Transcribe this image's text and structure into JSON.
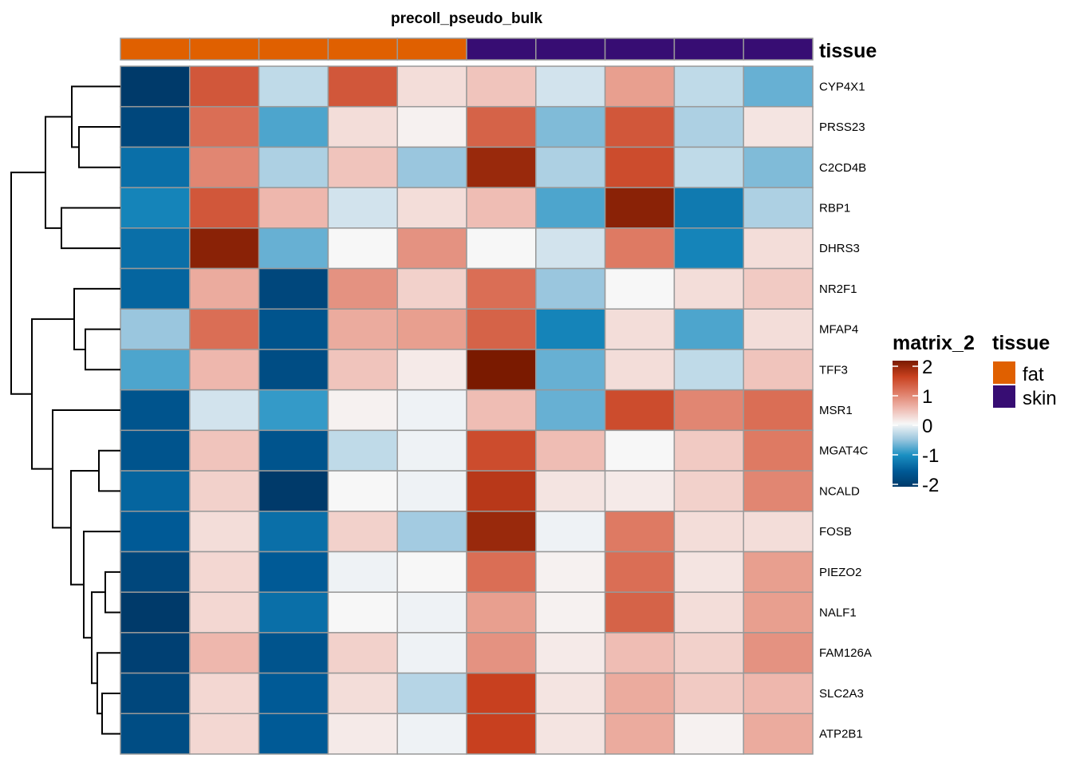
{
  "chart_data": {
    "type": "heatmap",
    "title": "precoll_pseudo_bulk",
    "annotation": {
      "name": "tissue",
      "values": [
        "fat",
        "fat",
        "fat",
        "fat",
        "fat",
        "skin",
        "skin",
        "skin",
        "skin",
        "skin"
      ],
      "colors": {
        "fat": "#e06000",
        "skin": "#370d73"
      }
    },
    "rows": [
      "CYP4X1",
      "PRSS23",
      "C2CD4B",
      "RBP1",
      "DHRS3",
      "NR2F1",
      "MFAP4",
      "TFF3",
      "MSR1",
      "MGAT4C",
      "NCALD",
      "FOSB",
      "PIEZO2",
      "NALF1",
      "FAM126A",
      "SLC2A3",
      "ATP2B1"
    ],
    "values": [
      [
        -2.0,
        1.3,
        -0.3,
        1.3,
        0.2,
        0.4,
        -0.2,
        0.7,
        -0.3,
        -0.7
      ],
      [
        -1.8,
        1.1,
        -0.8,
        0.2,
        0.05,
        1.2,
        -0.6,
        1.3,
        -0.4,
        0.15
      ],
      [
        -1.3,
        0.9,
        -0.4,
        0.4,
        -0.5,
        1.8,
        -0.4,
        1.4,
        -0.3,
        -0.6
      ],
      [
        -1.1,
        1.3,
        0.5,
        -0.2,
        0.2,
        0.45,
        -0.8,
        1.9,
        -1.2,
        -0.4
      ],
      [
        -1.3,
        1.9,
        -0.7,
        0.0,
        0.8,
        0.0,
        -0.2,
        1.0,
        -1.1,
        0.2
      ],
      [
        -1.4,
        0.6,
        -1.8,
        0.8,
        0.3,
        1.1,
        -0.5,
        0.0,
        0.2,
        0.35
      ],
      [
        -0.5,
        1.1,
        -1.6,
        0.6,
        0.7,
        1.2,
        -1.1,
        0.2,
        -0.8,
        0.2
      ],
      [
        -0.8,
        0.5,
        -1.7,
        0.4,
        0.1,
        2.1,
        -0.7,
        0.2,
        -0.3,
        0.4
      ],
      [
        -1.6,
        -0.2,
        -0.9,
        0.05,
        -0.05,
        0.45,
        -0.7,
        1.4,
        0.9,
        1.1
      ],
      [
        -1.6,
        0.4,
        -1.6,
        -0.3,
        -0.05,
        1.4,
        0.45,
        0.0,
        0.35,
        1.0
      ],
      [
        -1.4,
        0.3,
        -2.0,
        0.0,
        -0.05,
        1.6,
        0.15,
        0.1,
        0.3,
        0.9
      ],
      [
        -1.5,
        0.2,
        -1.3,
        0.3,
        -0.45,
        1.8,
        -0.05,
        1.0,
        0.2,
        0.2
      ],
      [
        -1.8,
        0.25,
        -1.5,
        -0.05,
        0.0,
        1.1,
        0.05,
        1.1,
        0.15,
        0.7
      ],
      [
        -2.1,
        0.25,
        -1.3,
        0.0,
        -0.05,
        0.7,
        0.05,
        1.2,
        0.2,
        0.7
      ],
      [
        -1.9,
        0.5,
        -1.6,
        0.3,
        -0.05,
        0.8,
        0.1,
        0.45,
        0.3,
        0.8
      ],
      [
        -1.8,
        0.25,
        -1.5,
        0.2,
        -0.35,
        1.5,
        0.15,
        0.6,
        0.35,
        0.5
      ],
      [
        -1.7,
        0.25,
        -1.5,
        0.1,
        -0.05,
        1.5,
        0.15,
        0.6,
        0.05,
        0.6
      ]
    ],
    "color_scale": {
      "name": "matrix_2",
      "stops": [
        [
          -2,
          "#003a6a"
        ],
        [
          -1.5,
          "#005a96"
        ],
        [
          -1,
          "#1a8fc2"
        ],
        [
          -0.5,
          "#9ac6de"
        ],
        [
          0,
          "#f7f7f7"
        ],
        [
          0.5,
          "#eeb7ad"
        ],
        [
          1,
          "#de7a63"
        ],
        [
          1.5,
          "#c8401f"
        ],
        [
          2,
          "#7a1a00"
        ]
      ],
      "ticks": [
        "2",
        "1",
        "0",
        "-1",
        "-2"
      ]
    },
    "legend_title_tissue": "tissue",
    "legend_labels": [
      "fat",
      "skin"
    ],
    "row_dendrogram": true,
    "legend_placement": "right"
  }
}
